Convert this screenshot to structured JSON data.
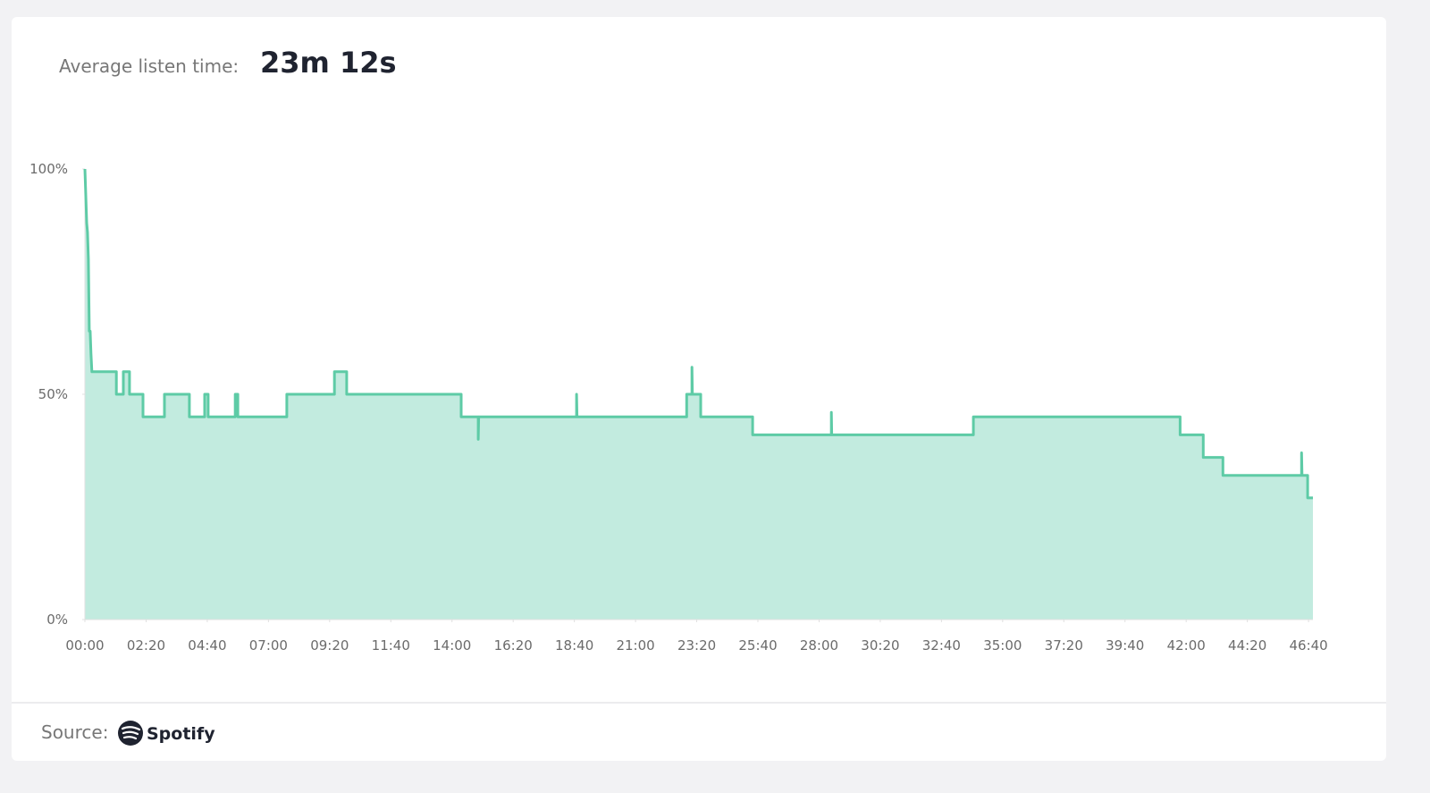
{
  "header": {
    "label": "Average listen time:",
    "value": "23m 12s"
  },
  "footer": {
    "label": "Source:",
    "brand": "Spotify"
  },
  "chart_data": {
    "type": "area",
    "x": [
      0,
      4,
      6,
      8,
      10,
      12,
      14,
      16,
      72,
      72,
      88,
      88,
      102,
      102,
      133,
      133,
      182,
      182,
      239,
      239,
      274,
      274,
      282,
      282,
      344,
      344,
      350,
      350,
      462,
      462,
      571,
      571,
      599,
      599,
      861,
      861,
      900,
      900,
      901,
      1125,
      1125,
      1126,
      1377,
      1377,
      1389,
      1389,
      1390,
      1409,
      1409,
      1528,
      1528,
      1708,
      1708,
      1709,
      2033,
      2033,
      2506,
      2506,
      2559,
      2559,
      2604,
      2604,
      2784,
      2784,
      2785,
      2798,
      2798,
      2810
    ],
    "values": [
      100,
      88,
      86,
      80,
      64,
      64,
      59,
      55,
      55,
      50,
      50,
      55,
      55,
      50,
      50,
      45,
      45,
      50,
      50,
      45,
      45,
      50,
      50,
      45,
      45,
      50,
      50,
      45,
      45,
      50,
      50,
      55,
      55,
      50,
      50,
      45,
      45,
      40,
      45,
      45,
      50,
      45,
      45,
      50,
      50,
      56,
      50,
      50,
      45,
      45,
      41,
      41,
      46,
      41,
      41,
      45,
      45,
      41,
      41,
      36,
      36,
      32,
      32,
      37,
      32,
      32,
      27,
      27
    ],
    "color": "#5ecba6",
    "fill": "#c2ebdf",
    "xlim": [
      0,
      2810
    ],
    "xticks": [
      {
        "value": 0,
        "label": "00:00"
      },
      {
        "value": 140,
        "label": "02:20"
      },
      {
        "value": 280,
        "label": "04:40"
      },
      {
        "value": 420,
        "label": "07:00"
      },
      {
        "value": 560,
        "label": "09:20"
      },
      {
        "value": 700,
        "label": "11:40"
      },
      {
        "value": 840,
        "label": "14:00"
      },
      {
        "value": 980,
        "label": "16:20"
      },
      {
        "value": 1120,
        "label": "18:40"
      },
      {
        "value": 1260,
        "label": "21:00"
      },
      {
        "value": 1400,
        "label": "23:20"
      },
      {
        "value": 1540,
        "label": "25:40"
      },
      {
        "value": 1680,
        "label": "28:00"
      },
      {
        "value": 1820,
        "label": "30:20"
      },
      {
        "value": 1960,
        "label": "32:40"
      },
      {
        "value": 2100,
        "label": "35:00"
      },
      {
        "value": 2240,
        "label": "37:20"
      },
      {
        "value": 2380,
        "label": "39:40"
      },
      {
        "value": 2520,
        "label": "42:00"
      },
      {
        "value": 2660,
        "label": "44:20"
      },
      {
        "value": 2800,
        "label": "46:40"
      }
    ],
    "ylim": [
      0,
      100
    ],
    "yticks": [
      {
        "value": 0,
        "label": "0%"
      },
      {
        "value": 50,
        "label": "50%"
      },
      {
        "value": 100,
        "label": "100%"
      }
    ]
  }
}
